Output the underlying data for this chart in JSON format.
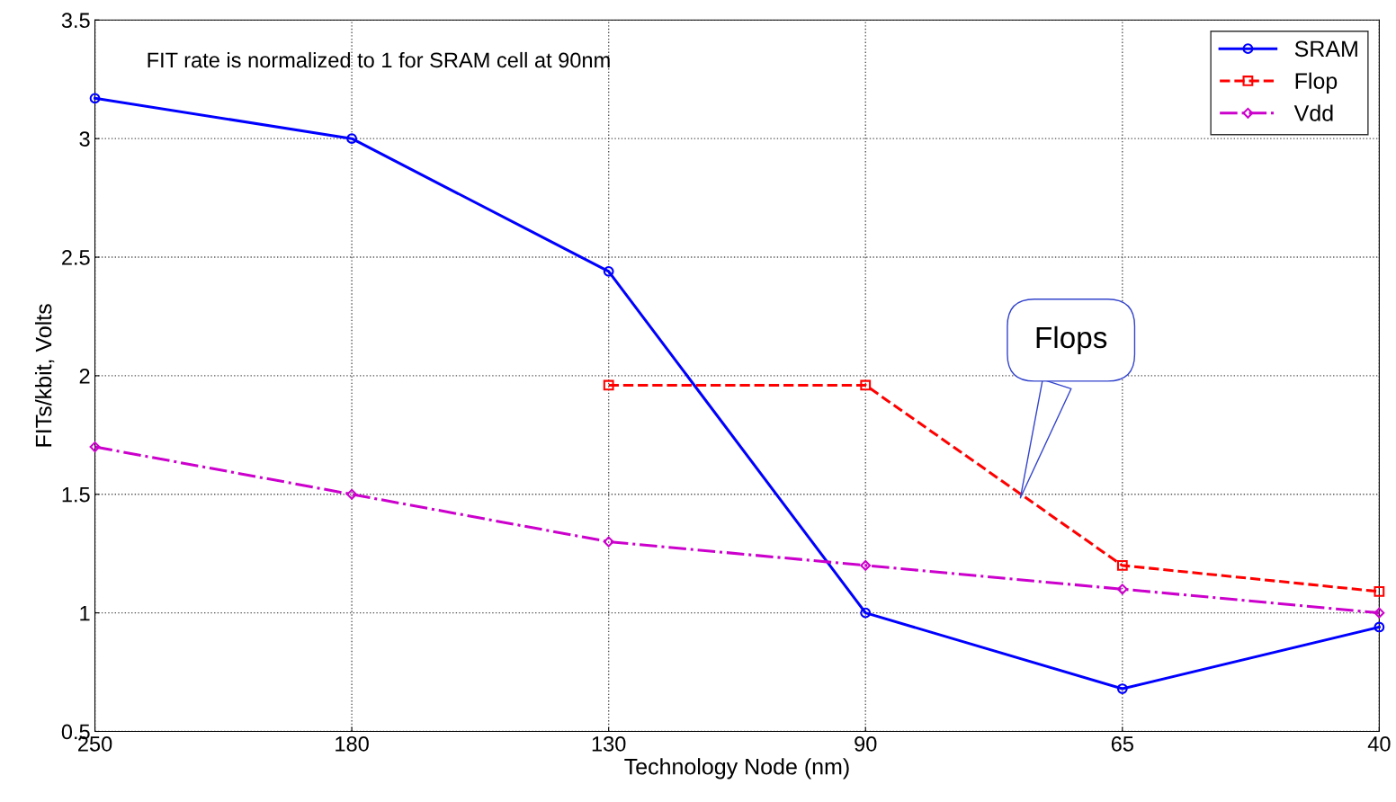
{
  "chart_data": {
    "type": "line",
    "xlabel": "Technology Node (nm)",
    "ylabel": "FITs/kbit, Volts",
    "categories": [
      "250",
      "180",
      "130",
      "90",
      "65",
      "40"
    ],
    "series": [
      {
        "name": "SRAM",
        "color": "#0000ff",
        "values": [
          3.17,
          3.0,
          2.44,
          1.0,
          0.68,
          0.94
        ],
        "marker": "circle",
        "line_style": "solid"
      },
      {
        "name": "Flop",
        "color": "#ff0000",
        "values": [
          null,
          null,
          1.96,
          1.96,
          1.2,
          1.09
        ],
        "marker": "square",
        "line_style": "dashed"
      },
      {
        "name": "Vdd",
        "color": "#cc00cc",
        "values": [
          1.7,
          1.5,
          1.3,
          1.2,
          1.1,
          1.0
        ],
        "marker": "diamond",
        "line_style": "dashdot"
      }
    ],
    "ylim": [
      0.5,
      3.5
    ],
    "yticks": [
      0.5,
      1,
      1.5,
      2,
      2.5,
      3,
      3.5
    ],
    "grid": true,
    "legend": "top right",
    "annotations": [
      "FIT rate is normalized to 1 for SRAM cell at 90nm",
      "Flops"
    ]
  }
}
